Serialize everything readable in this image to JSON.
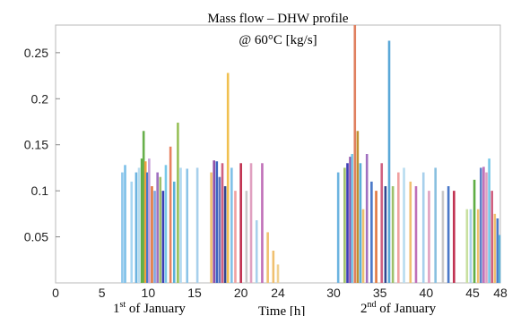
{
  "chart_data": {
    "type": "bar",
    "title_line1": "Mass flow – DHW profile",
    "title_line2": "@ 60°C [kg/s]",
    "xlabel": "Time [h]",
    "day1_label": "1st of January",
    "day2_label": "2nd of January",
    "day_label_number_1": "1",
    "day_label_number_2": "2",
    "day_label_sup_1": "st",
    "day_label_sup_2": "nd",
    "day_label_rest": "of January",
    "xlim": [
      0,
      48
    ],
    "ylim": [
      0,
      0.28
    ],
    "xticks": [
      0,
      5,
      10,
      15,
      20,
      24,
      30,
      35,
      40,
      45,
      48
    ],
    "yticks": [
      0.05,
      0.1,
      0.15,
      0.2,
      0.25
    ],
    "ytick_labels": [
      "0.05",
      "0.1",
      "0.15",
      "0.2",
      "0.25"
    ],
    "xtick_labels": [
      "0",
      "5",
      "10",
      "15",
      "20",
      "24",
      "30",
      "35",
      "40",
      "45",
      "48"
    ],
    "grid": false,
    "bars": [
      {
        "x": 7.2,
        "y": 0.12,
        "color": "#8fc8ec"
      },
      {
        "x": 7.5,
        "y": 0.128,
        "color": "#7bbfe8"
      },
      {
        "x": 8.2,
        "y": 0.11,
        "color": "#a8d6f2"
      },
      {
        "x": 8.7,
        "y": 0.12,
        "color": "#6cb4e0"
      },
      {
        "x": 9.0,
        "y": 0.125,
        "color": "#b8dcf0"
      },
      {
        "x": 9.3,
        "y": 0.135,
        "color": "#5fae45"
      },
      {
        "x": 9.5,
        "y": 0.165,
        "color": "#68b04c"
      },
      {
        "x": 9.7,
        "y": 0.132,
        "color": "#f0a040"
      },
      {
        "x": 9.9,
        "y": 0.12,
        "color": "#4a78c8"
      },
      {
        "x": 10.1,
        "y": 0.135,
        "color": "#c9a1d8"
      },
      {
        "x": 10.4,
        "y": 0.105,
        "color": "#e07840"
      },
      {
        "x": 10.7,
        "y": 0.1,
        "color": "#7fa5e0"
      },
      {
        "x": 11.0,
        "y": 0.12,
        "color": "#a070c0"
      },
      {
        "x": 11.3,
        "y": 0.115,
        "color": "#9ec06a"
      },
      {
        "x": 11.6,
        "y": 0.1,
        "color": "#3c3cb4"
      },
      {
        "x": 11.9,
        "y": 0.128,
        "color": "#78c8e8"
      },
      {
        "x": 12.4,
        "y": 0.148,
        "color": "#e88060"
      },
      {
        "x": 12.8,
        "y": 0.11,
        "color": "#5ab0d8"
      },
      {
        "x": 13.2,
        "y": 0.174,
        "color": "#98c058"
      },
      {
        "x": 13.5,
        "y": 0.125,
        "color": "#b0d8f0"
      },
      {
        "x": 14.2,
        "y": 0.124,
        "color": "#8cc4e8"
      },
      {
        "x": 15.3,
        "y": 0.125,
        "color": "#a8d0ec"
      },
      {
        "x": 16.8,
        "y": 0.12,
        "color": "#f0c070"
      },
      {
        "x": 17.1,
        "y": 0.133,
        "color": "#9050a8"
      },
      {
        "x": 17.4,
        "y": 0.132,
        "color": "#3c64c0"
      },
      {
        "x": 17.7,
        "y": 0.115,
        "color": "#6078c0"
      },
      {
        "x": 18.0,
        "y": 0.13,
        "color": "#d06080"
      },
      {
        "x": 18.3,
        "y": 0.105,
        "color": "#304890"
      },
      {
        "x": 18.6,
        "y": 0.228,
        "color": "#f0c050"
      },
      {
        "x": 19.0,
        "y": 0.125,
        "color": "#80c0e8"
      },
      {
        "x": 19.4,
        "y": 0.1,
        "color": "#f0a0a0"
      },
      {
        "x": 20.0,
        "y": 0.13,
        "color": "#c03050"
      },
      {
        "x": 20.6,
        "y": 0.1,
        "color": "#c8c8c8"
      },
      {
        "x": 21.1,
        "y": 0.13,
        "color": "#e0a0c0"
      },
      {
        "x": 21.7,
        "y": 0.068,
        "color": "#a8d0ec"
      },
      {
        "x": 22.3,
        "y": 0.13,
        "color": "#c070b8"
      },
      {
        "x": 22.9,
        "y": 0.055,
        "color": "#f0c070"
      },
      {
        "x": 23.5,
        "y": 0.035,
        "color": "#f0c070"
      },
      {
        "x": 24.0,
        "y": 0.02,
        "color": "#f0d090"
      },
      {
        "x": 30.5,
        "y": 0.12,
        "color": "#6cb4e0"
      },
      {
        "x": 31.2,
        "y": 0.125,
        "color": "#9ec06a"
      },
      {
        "x": 31.5,
        "y": 0.13,
        "color": "#3c3cb4"
      },
      {
        "x": 31.8,
        "y": 0.137,
        "color": "#9050a8"
      },
      {
        "x": 32.0,
        "y": 0.14,
        "color": "#78c8e8"
      },
      {
        "x": 32.3,
        "y": 0.28,
        "color": "#e08060"
      },
      {
        "x": 32.6,
        "y": 0.165,
        "color": "#c09030"
      },
      {
        "x": 32.9,
        "y": 0.13,
        "color": "#5ab0d8"
      },
      {
        "x": 33.2,
        "y": 0.08,
        "color": "#f0c070"
      },
      {
        "x": 33.6,
        "y": 0.14,
        "color": "#a070c0"
      },
      {
        "x": 34.1,
        "y": 0.11,
        "color": "#4a78c8"
      },
      {
        "x": 34.6,
        "y": 0.1,
        "color": "#e07840"
      },
      {
        "x": 35.2,
        "y": 0.13,
        "color": "#d06080"
      },
      {
        "x": 35.6,
        "y": 0.105,
        "color": "#304890"
      },
      {
        "x": 36.0,
        "y": 0.263,
        "color": "#5aa8d8"
      },
      {
        "x": 36.4,
        "y": 0.105,
        "color": "#9ec06a"
      },
      {
        "x": 37.0,
        "y": 0.12,
        "color": "#f0a0a0"
      },
      {
        "x": 37.6,
        "y": 0.125,
        "color": "#b8dcf0"
      },
      {
        "x": 38.3,
        "y": 0.11,
        "color": "#f0c070"
      },
      {
        "x": 38.9,
        "y": 0.105,
        "color": "#c070b8"
      },
      {
        "x": 39.7,
        "y": 0.12,
        "color": "#a8d0ec"
      },
      {
        "x": 40.3,
        "y": 0.1,
        "color": "#e0a0c0"
      },
      {
        "x": 41.0,
        "y": 0.125,
        "color": "#88c0e0"
      },
      {
        "x": 41.8,
        "y": 0.1,
        "color": "#c8c8c8"
      },
      {
        "x": 42.4,
        "y": 0.105,
        "color": "#4a78c8"
      },
      {
        "x": 43.0,
        "y": 0.1,
        "color": "#c03050"
      },
      {
        "x": 44.4,
        "y": 0.08,
        "color": "#c8e0a0"
      },
      {
        "x": 44.8,
        "y": 0.08,
        "color": "#a8d0ec"
      },
      {
        "x": 45.2,
        "y": 0.112,
        "color": "#5fae45"
      },
      {
        "x": 45.6,
        "y": 0.08,
        "color": "#f0c070"
      },
      {
        "x": 45.9,
        "y": 0.125,
        "color": "#6080c8"
      },
      {
        "x": 46.2,
        "y": 0.126,
        "color": "#c070b8"
      },
      {
        "x": 46.5,
        "y": 0.12,
        "color": "#e0a0c0"
      },
      {
        "x": 46.8,
        "y": 0.135,
        "color": "#78c8e8"
      },
      {
        "x": 47.1,
        "y": 0.1,
        "color": "#d06080"
      },
      {
        "x": 47.4,
        "y": 0.075,
        "color": "#f0c070"
      },
      {
        "x": 47.7,
        "y": 0.07,
        "color": "#4a78c8"
      },
      {
        "x": 47.9,
        "y": 0.052,
        "color": "#5ab0d8"
      }
    ]
  }
}
